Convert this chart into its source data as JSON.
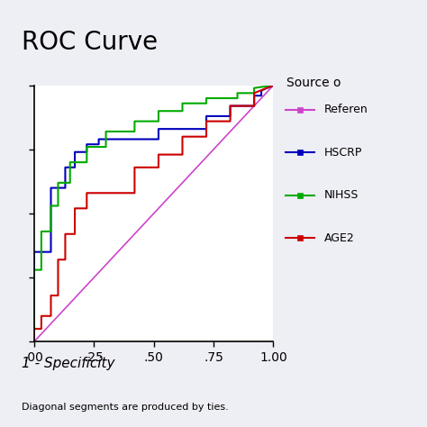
{
  "title": "ROC Curve",
  "xlabel": "1 - Specificity",
  "footnote": "Diagonal segments are produced by ties.",
  "legend_title": "Source o",
  "background_color": "#eeeef5",
  "plot_bg_color": "#ffffff",
  "reference_line": {
    "color": "#cc44cc",
    "label": "Referen"
  },
  "curves": [
    {
      "name": "HSCRP",
      "color": "#0000bb",
      "x": [
        0.0,
        0.0,
        0.07,
        0.07,
        0.13,
        0.13,
        0.17,
        0.17,
        0.22,
        0.22,
        0.27,
        0.27,
        0.52,
        0.52,
        0.72,
        0.72,
        0.82,
        0.82,
        0.92,
        0.92,
        0.95,
        0.95,
        1.0
      ],
      "y": [
        0.0,
        0.35,
        0.35,
        0.6,
        0.6,
        0.68,
        0.68,
        0.74,
        0.74,
        0.77,
        0.77,
        0.79,
        0.79,
        0.83,
        0.83,
        0.88,
        0.88,
        0.92,
        0.92,
        0.96,
        0.96,
        0.98,
        1.0
      ]
    },
    {
      "name": "NIHSS",
      "color": "#00aa00",
      "x": [
        0.0,
        0.0,
        0.03,
        0.03,
        0.07,
        0.07,
        0.1,
        0.1,
        0.15,
        0.15,
        0.22,
        0.22,
        0.3,
        0.3,
        0.42,
        0.42,
        0.52,
        0.52,
        0.62,
        0.62,
        0.72,
        0.72,
        0.85,
        0.85,
        0.92,
        0.92,
        1.0
      ],
      "y": [
        0.0,
        0.28,
        0.28,
        0.43,
        0.43,
        0.53,
        0.53,
        0.62,
        0.62,
        0.7,
        0.7,
        0.76,
        0.76,
        0.82,
        0.82,
        0.86,
        0.86,
        0.9,
        0.9,
        0.93,
        0.93,
        0.95,
        0.95,
        0.97,
        0.97,
        0.99,
        1.0
      ]
    },
    {
      "name": "AGE2",
      "color": "#cc0000",
      "x": [
        0.0,
        0.0,
        0.03,
        0.03,
        0.07,
        0.07,
        0.1,
        0.1,
        0.13,
        0.13,
        0.17,
        0.17,
        0.22,
        0.22,
        0.42,
        0.42,
        0.52,
        0.52,
        0.62,
        0.62,
        0.72,
        0.72,
        0.82,
        0.82,
        0.92,
        0.92,
        1.0
      ],
      "y": [
        0.0,
        0.05,
        0.05,
        0.1,
        0.1,
        0.18,
        0.18,
        0.32,
        0.32,
        0.42,
        0.42,
        0.52,
        0.52,
        0.58,
        0.58,
        0.68,
        0.68,
        0.73,
        0.73,
        0.8,
        0.8,
        0.86,
        0.86,
        0.92,
        0.92,
        0.97,
        1.0
      ]
    }
  ],
  "xticks": [
    0.0,
    0.25,
    0.5,
    0.75,
    1.0
  ],
  "xticklabels": [
    ".00",
    ".25",
    ".50",
    ".75",
    "1.00"
  ],
  "ytick_positions": [
    0.0,
    0.25,
    0.5,
    0.75,
    1.0
  ],
  "title_fontsize": 20,
  "axis_fontsize": 10,
  "legend_fontsize": 10
}
